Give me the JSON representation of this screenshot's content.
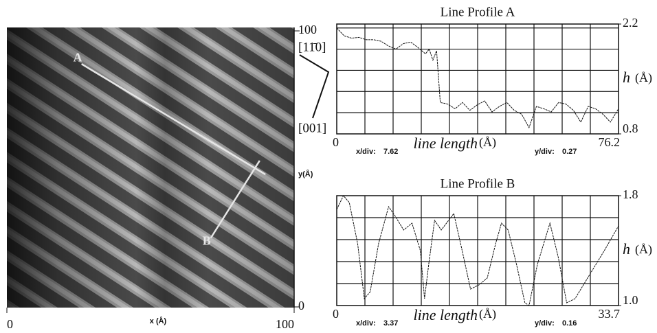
{
  "chart_data": [
    {
      "type": "image",
      "xlabel": "x (Å)",
      "ylabel": "y(Å)",
      "xlim": [
        0,
        100
      ],
      "ylim": [
        0,
        100
      ],
      "xticks": [
        0,
        100
      ],
      "yticks": [
        0,
        100
      ],
      "directions": [
        "[11̄0]",
        "[001]"
      ],
      "profiles": [
        {
          "name": "A",
          "x": [
            26,
            90
          ],
          "y": [
            88,
            48
          ]
        },
        {
          "name": "B",
          "x": [
            71,
            88
          ],
          "y": [
            25,
            53
          ]
        }
      ],
      "color": "#e6e6e6"
    },
    {
      "type": "line",
      "title": "Line Profile A",
      "xlabel": "line length",
      "xlabel_unit": "(Å)",
      "ylabel": "h",
      "ylabel_unit": "(Å)",
      "x": [
        0,
        2,
        4,
        6,
        8,
        10,
        12,
        14,
        16,
        18,
        20,
        22,
        24,
        25,
        26,
        27,
        28,
        30,
        32,
        34,
        36,
        38,
        40,
        42,
        44,
        46,
        48,
        50,
        52,
        54,
        56,
        58,
        60,
        62,
        64,
        66,
        68,
        70,
        72,
        74,
        76.2
      ],
      "values": [
        2.15,
        2.05,
        2.02,
        2.03,
        2.0,
        2.0,
        1.98,
        1.92,
        1.88,
        1.95,
        1.97,
        1.9,
        1.82,
        1.88,
        1.74,
        1.86,
        1.2,
        1.18,
        1.12,
        1.2,
        1.1,
        1.17,
        1.22,
        1.08,
        1.15,
        1.2,
        1.1,
        1.05,
        0.88,
        1.15,
        1.12,
        1.08,
        1.2,
        1.18,
        1.1,
        0.95,
        1.15,
        1.12,
        1.05,
        0.95,
        1.12
      ],
      "xlim": [
        0,
        76.2
      ],
      "ylim": [
        0.8,
        2.2
      ],
      "xticks": [
        0,
        76.2
      ],
      "yticks": [
        0.8,
        2.2
      ],
      "x_div_label": "x/div:",
      "x_div": 7.62,
      "y_div_label": "y/div:",
      "y_div": 0.27,
      "color": "#111111"
    },
    {
      "type": "line",
      "title": "Line Profile B",
      "xlabel": "line length",
      "xlabel_unit": "(Å)",
      "ylabel": "h",
      "ylabel_unit": "(Å)",
      "x": [
        0,
        0.8,
        1.5,
        2.5,
        3.3,
        4,
        5,
        6.2,
        7,
        8,
        9,
        10,
        10.5,
        11,
        11.7,
        12.5,
        14,
        15,
        16,
        17,
        18,
        19,
        19.7,
        20.5,
        21.5,
        22.5,
        23,
        24,
        25.5,
        26.5,
        27.5,
        28.5,
        29.5,
        31,
        32,
        33.7
      ],
      "values": [
        1.7,
        1.8,
        1.75,
        1.45,
        1.05,
        1.1,
        1.45,
        1.72,
        1.65,
        1.55,
        1.6,
        1.4,
        1.05,
        1.3,
        1.62,
        1.55,
        1.67,
        1.4,
        1.12,
        1.15,
        1.2,
        1.45,
        1.6,
        1.55,
        1.3,
        1.02,
        1.0,
        1.3,
        1.6,
        1.35,
        1.02,
        1.05,
        1.15,
        1.3,
        1.4,
        1.58
      ],
      "xlim": [
        0,
        33.7
      ],
      "ylim": [
        1.0,
        1.8
      ],
      "xticks": [
        0,
        33.7
      ],
      "yticks": [
        {
          "value": 1.0,
          "label": "1.0"
        },
        1.8
      ],
      "x_div_label": "x/div:",
      "x_div": 3.37,
      "y_div_label": "y/div:",
      "y_div": 0.16,
      "color": "#111111"
    }
  ]
}
